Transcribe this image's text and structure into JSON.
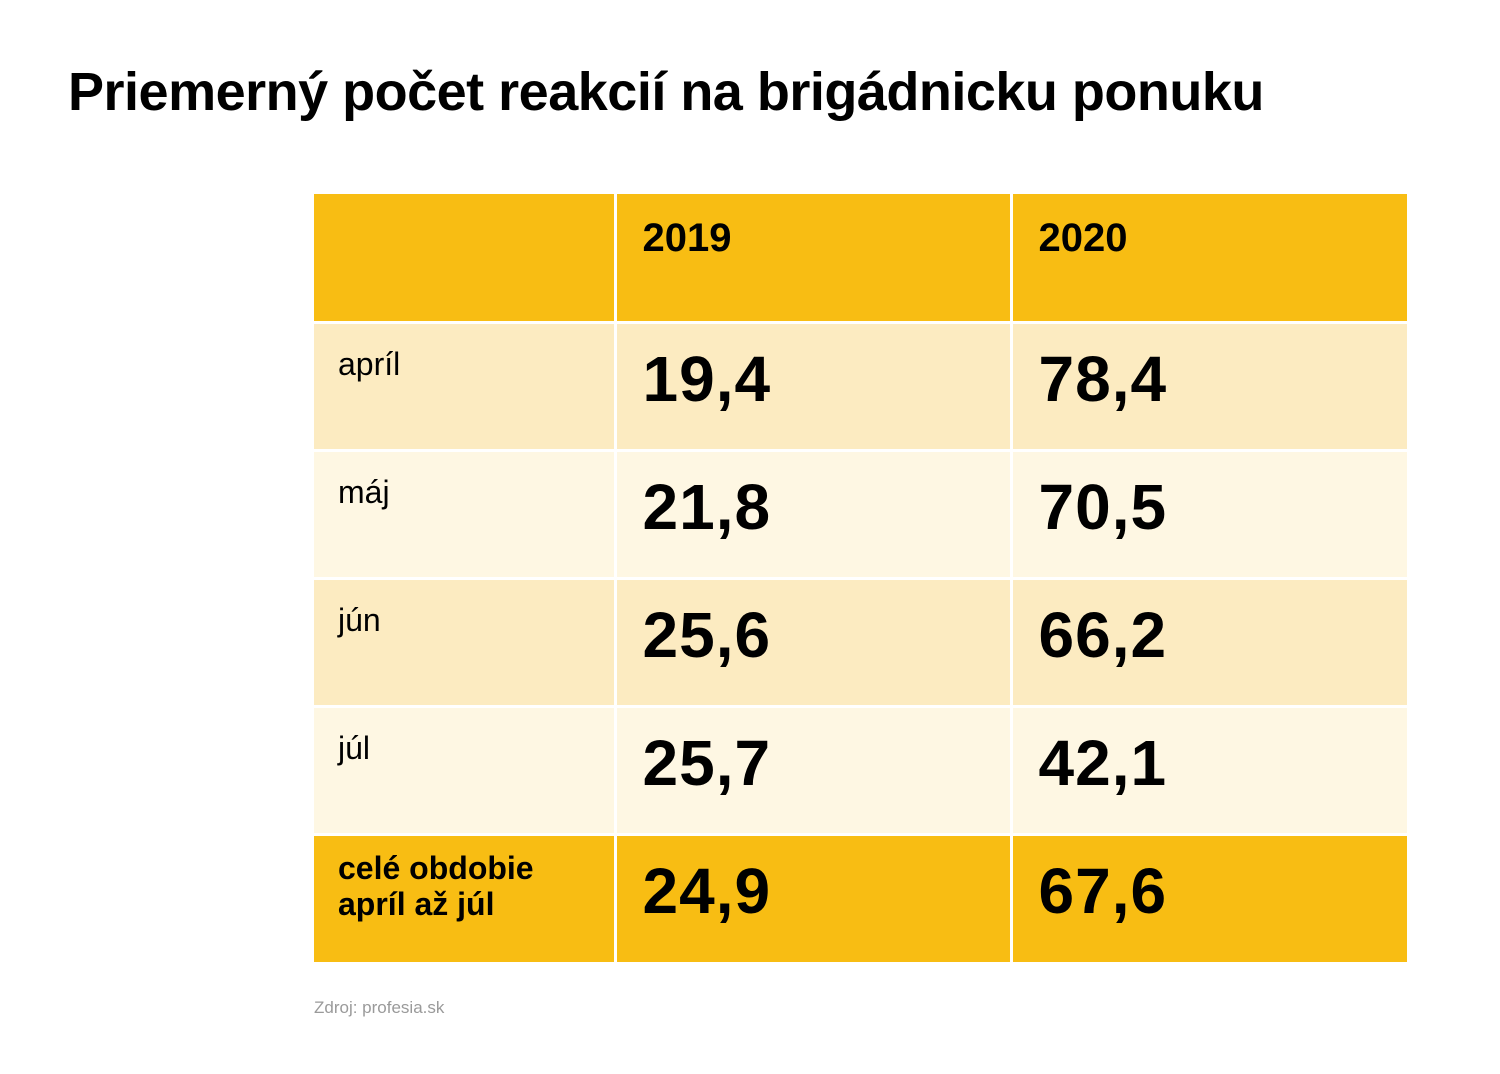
{
  "title": "Priemerný počet reakcií na brigádnicku ponuku",
  "source": "Zdroj: profesia.sk",
  "colors": {
    "header_bg": "#f8bd13",
    "total_bg": "#f8bd13",
    "row_shade_a": "#fcebc1",
    "row_shade_b": "#fef7e3"
  },
  "table": {
    "headers": [
      "",
      "2019",
      "2020"
    ],
    "rows": [
      {
        "label": "apríl",
        "v2019": "19,4",
        "v2020": "78,4"
      },
      {
        "label": "máj",
        "v2019": "21,8",
        "v2020": "70,5"
      },
      {
        "label": "jún",
        "v2019": "25,6",
        "v2020": "66,2"
      },
      {
        "label": "júl",
        "v2019": "25,7",
        "v2020": "42,1"
      }
    ],
    "total": {
      "label_line1": "celé obdobie",
      "label_line2": "apríl až júl",
      "v2019": "24,9",
      "v2020": "67,6"
    }
  },
  "chart_data": {
    "type": "table",
    "title": "Priemerný počet reakcií na brigádnicku ponuku",
    "columns": [
      "2019",
      "2020"
    ],
    "categories": [
      "apríl",
      "máj",
      "jún",
      "júl",
      "celé obdobie apríl až júl"
    ],
    "series": [
      {
        "name": "2019",
        "values": [
          19.4,
          21.8,
          25.6,
          25.7,
          24.9
        ]
      },
      {
        "name": "2020",
        "values": [
          78.4,
          70.5,
          66.2,
          42.1,
          67.6
        ]
      }
    ]
  }
}
